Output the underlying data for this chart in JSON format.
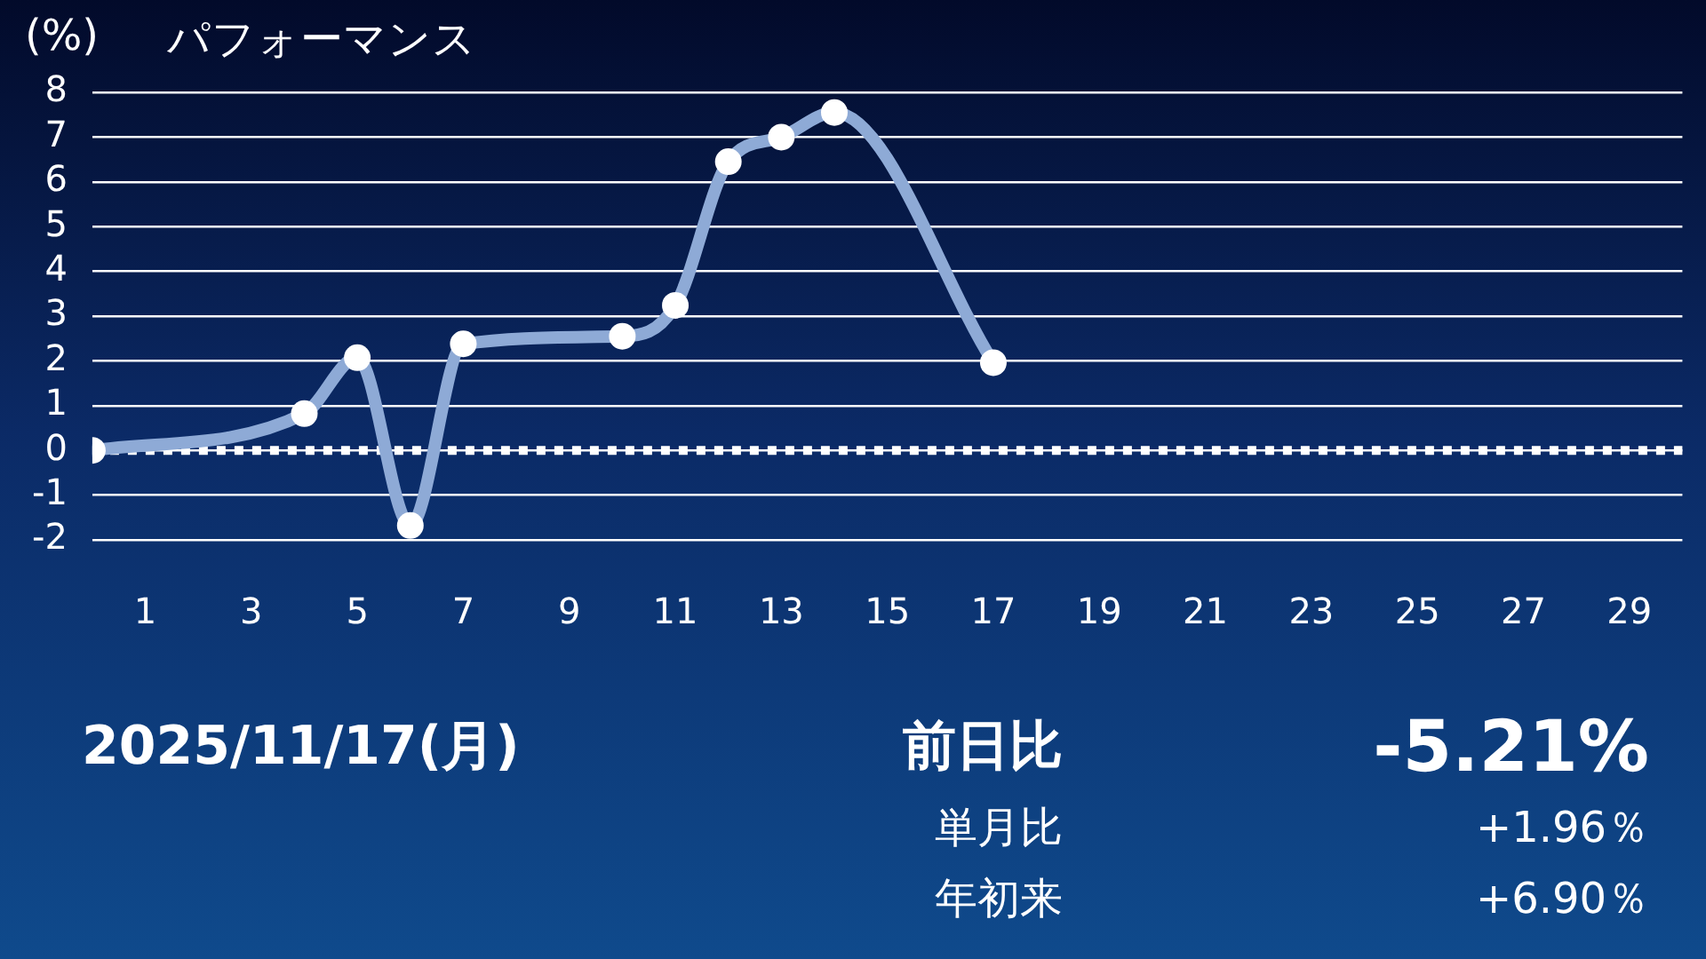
{
  "chart_data": {
    "type": "line",
    "title": "パフォーマンス",
    "ylabel": "(%)",
    "x": [
      0,
      4,
      5,
      6,
      7,
      10,
      11,
      12,
      13,
      14,
      17
    ],
    "series": [
      {
        "color": "#8eaad6",
        "values": [
          0,
          0.82,
          2.07,
          -1.68,
          2.38,
          2.55,
          3.24,
          6.45,
          7.0,
          7.55,
          1.96
        ]
      }
    ],
    "xlim": [
      0,
      30
    ],
    "xticks": [
      1,
      3,
      5,
      7,
      9,
      11,
      13,
      15,
      17,
      19,
      21,
      23,
      25,
      27,
      29
    ],
    "ylim": [
      -2,
      8
    ],
    "yticks": [
      -2,
      -1,
      0,
      1,
      2,
      3,
      4,
      5,
      6,
      7,
      8
    ],
    "grid": "y",
    "legend": false,
    "marker": "circle",
    "line_style": "solid",
    "ref_lines": [
      {
        "axis": "y",
        "value": 0,
        "color": "#ffffff",
        "line_style": "dotted"
      }
    ],
    "annotations": [
      "2025/11/17(月)",
      "前日比",
      "-5.21%",
      "単月比",
      "+1.96％",
      "年初来",
      "+6.90％"
    ]
  }
}
